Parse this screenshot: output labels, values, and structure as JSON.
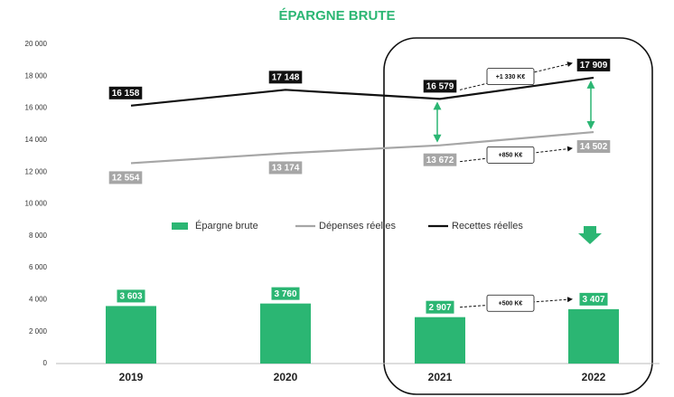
{
  "chart_data": {
    "type": "bar",
    "title": "ÉPARGNE BRUTE",
    "categories": [
      "2019",
      "2020",
      "2021",
      "2022"
    ],
    "series": [
      {
        "name": "Épargne brute",
        "type": "bar",
        "color": "#2bb673",
        "values": [
          3603,
          3760,
          2907,
          3407
        ],
        "value_labels": [
          "3 603",
          "3 760",
          "2 907",
          "3 407"
        ]
      },
      {
        "name": "Dépenses réelles",
        "type": "line",
        "color": "#a6a6a6",
        "values": [
          12554,
          13174,
          13672,
          14502
        ],
        "value_labels": [
          "12 554",
          "13 174",
          "13 672",
          "14 502"
        ]
      },
      {
        "name": "Recettes réelles",
        "type": "line",
        "color": "#111111",
        "values": [
          16158,
          17148,
          16579,
          17909
        ],
        "value_labels": [
          "16 158",
          "17 148",
          "16 579",
          "17 909"
        ]
      }
    ],
    "annotations": [
      "+1 330 K€",
      "+850 K€",
      "+500 K€"
    ],
    "ylim": [
      0,
      20000
    ],
    "yticks": [
      0,
      {
        "value": 2000,
        "label": "2 000"
      },
      {
        "value": 4000,
        "label": "4 000"
      },
      {
        "value": 6000,
        "label": "6 000"
      },
      {
        "value": 8000,
        "label": "8 000"
      },
      {
        "value": 10000,
        "label": "10 000"
      },
      {
        "value": 12000,
        "label": "12 000"
      },
      {
        "value": 14000,
        "label": "14 000"
      },
      {
        "value": 16000,
        "label": "16 000"
      },
      {
        "value": 18000,
        "label": "18 000"
      },
      {
        "value": 20000,
        "label": "20 000"
      }
    ],
    "grid": false
  }
}
